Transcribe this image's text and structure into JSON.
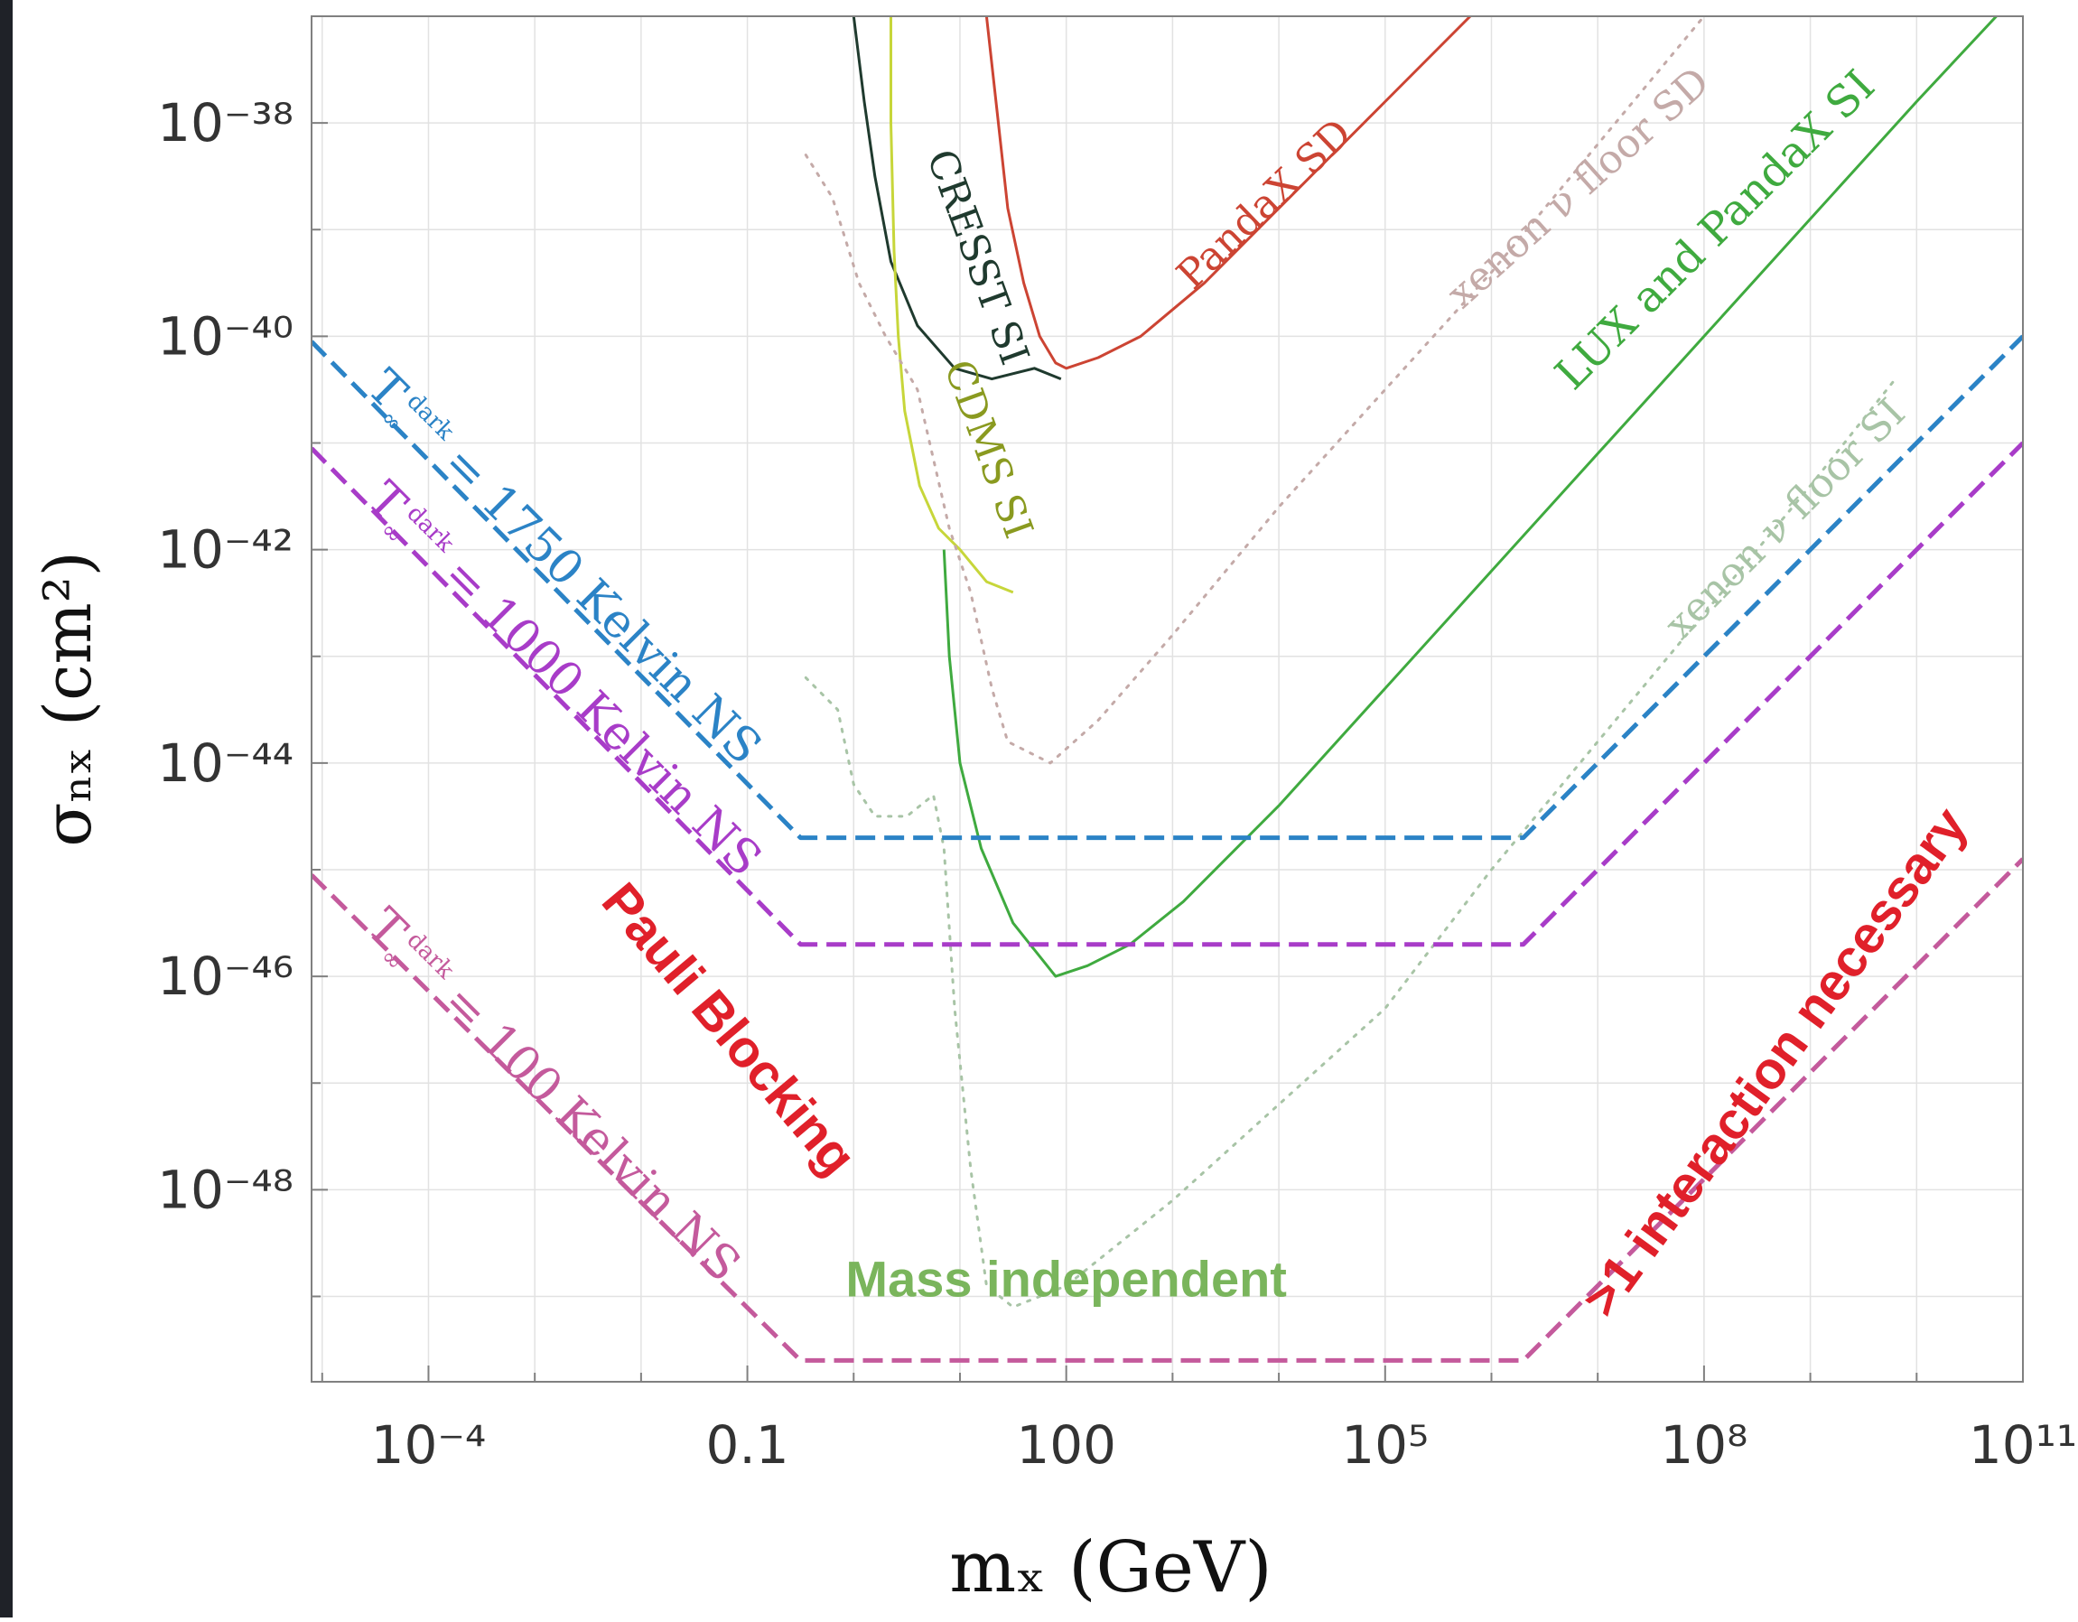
{
  "chart_data": {
    "type": "line",
    "title": "",
    "xlabel": "mₓ  (GeV)",
    "ylabel": "σₙₓ  (cm²)",
    "x_scale": "log10",
    "y_scale": "log10",
    "xlim_log10": [
      -5.1,
      11.0
    ],
    "ylim_log10": [
      -49.8,
      -37.0
    ],
    "x_ticks": [
      {
        "log": -4,
        "label": "10⁻⁴"
      },
      {
        "log": -1,
        "label": "0.1"
      },
      {
        "log": 2,
        "label": "100"
      },
      {
        "log": 5,
        "label": "10⁵"
      },
      {
        "log": 8,
        "label": "10⁸"
      },
      {
        "log": 11,
        "label": "10¹¹"
      }
    ],
    "y_ticks": [
      {
        "log": -38,
        "label": "10⁻³⁸"
      },
      {
        "log": -40,
        "label": "10⁻⁴⁰"
      },
      {
        "log": -42,
        "label": "10⁻⁴²"
      },
      {
        "log": -44,
        "label": "10⁻⁴⁴"
      },
      {
        "log": -46,
        "label": "10⁻⁴⁶"
      },
      {
        "log": -48,
        "label": "10⁻⁴⁸"
      }
    ],
    "grid": true,
    "series": [
      {
        "name": "PandaX SD",
        "color": "#cc4433",
        "dash": "solid",
        "width": 3,
        "points": [
          [
            1.25,
            -37
          ],
          [
            1.35,
            -37.9
          ],
          [
            1.45,
            -38.8
          ],
          [
            1.6,
            -39.5
          ],
          [
            1.75,
            -40
          ],
          [
            1.9,
            -40.25
          ],
          [
            2.0,
            -40.3
          ],
          [
            2.3,
            -40.2
          ],
          [
            2.7,
            -40.0
          ],
          [
            3.3,
            -39.5
          ],
          [
            4.1,
            -38.7
          ],
          [
            5.0,
            -37.8
          ],
          [
            5.8,
            -37
          ]
        ]
      },
      {
        "name": "CRESST SI",
        "color": "#1f3a2e",
        "dash": "solid",
        "width": 3,
        "points": [
          [
            0.0,
            -37
          ],
          [
            0.1,
            -37.8
          ],
          [
            0.2,
            -38.5
          ],
          [
            0.35,
            -39.3
          ],
          [
            0.6,
            -39.9
          ],
          [
            0.95,
            -40.3
          ],
          [
            1.3,
            -40.4
          ],
          [
            1.7,
            -40.3
          ],
          [
            1.95,
            -40.4
          ]
        ]
      },
      {
        "name": "CDMS SI",
        "color": "#c7d63a",
        "dash": "solid",
        "width": 3,
        "points": [
          [
            0.35,
            -37
          ],
          [
            0.35,
            -38
          ],
          [
            0.38,
            -39.2
          ],
          [
            0.42,
            -40
          ],
          [
            0.48,
            -40.7
          ],
          [
            0.62,
            -41.4
          ],
          [
            0.8,
            -41.8
          ],
          [
            1.0,
            -42
          ],
          [
            1.25,
            -42.3
          ],
          [
            1.5,
            -42.4
          ]
        ]
      },
      {
        "name": "LUX and PandaX SI",
        "color": "#3faa3f",
        "dash": "solid",
        "width": 3,
        "points": [
          [
            0.85,
            -42
          ],
          [
            0.9,
            -43
          ],
          [
            1.0,
            -44
          ],
          [
            1.2,
            -44.8
          ],
          [
            1.5,
            -45.5
          ],
          [
            1.9,
            -46
          ],
          [
            2.2,
            -45.9
          ],
          [
            2.6,
            -45.7
          ],
          [
            3.1,
            -45.3
          ],
          [
            4.0,
            -44.4
          ],
          [
            5.0,
            -43.3
          ],
          [
            6.0,
            -42.2
          ],
          [
            7.0,
            -41.1
          ],
          [
            8.0,
            -40.0
          ],
          [
            9.0,
            -38.9
          ],
          [
            10.0,
            -37.8
          ],
          [
            10.75,
            -37
          ]
        ]
      },
      {
        "name": "xenon ν floor SD",
        "color": "#c4aaa8",
        "dash": "dotted",
        "width": 3,
        "points": [
          [
            -0.45,
            -38.3
          ],
          [
            -0.2,
            -38.7
          ],
          [
            0.05,
            -39.5
          ],
          [
            0.3,
            -40
          ],
          [
            0.6,
            -40.5
          ],
          [
            0.9,
            -41.8
          ],
          [
            1.1,
            -42.4
          ],
          [
            1.3,
            -43.3
          ],
          [
            1.45,
            -43.8
          ],
          [
            1.85,
            -44
          ],
          [
            2.3,
            -43.6
          ],
          [
            3.0,
            -42.8
          ],
          [
            4.0,
            -41.6
          ],
          [
            5.0,
            -40.5
          ],
          [
            6.0,
            -39.4
          ],
          [
            7.0,
            -38.2
          ],
          [
            8.0,
            -37
          ]
        ]
      },
      {
        "name": "xenon ν floor SI",
        "color": "#a8c4a6",
        "dash": "dotted",
        "width": 3,
        "points": [
          [
            -0.45,
            -43.2
          ],
          [
            -0.15,
            -43.5
          ],
          [
            0.0,
            -44.2
          ],
          [
            0.2,
            -44.5
          ],
          [
            0.5,
            -44.5
          ],
          [
            0.75,
            -44.3
          ],
          [
            0.85,
            -44.8
          ],
          [
            0.95,
            -46.3
          ],
          [
            1.1,
            -47.8
          ],
          [
            1.25,
            -48.9
          ],
          [
            1.5,
            -49.1
          ],
          [
            2.0,
            -48.9
          ],
          [
            3.0,
            -48.1
          ],
          [
            4.0,
            -47.2
          ],
          [
            5.0,
            -46.3
          ],
          [
            6.0,
            -45.0
          ],
          [
            7.0,
            -43.8
          ],
          [
            8.0,
            -42.6
          ],
          [
            9.0,
            -41.4
          ],
          [
            9.8,
            -40.4
          ]
        ]
      },
      {
        "name": "T∞ dark = 1750 Kelvin NS",
        "color": "#2b83c6",
        "dash": "dashed",
        "width": 5,
        "points": [
          [
            -5.1,
            -40.05
          ],
          [
            -0.5,
            -44.7
          ],
          [
            6.3,
            -44.7
          ],
          [
            11.0,
            -40.0
          ]
        ]
      },
      {
        "name": "T∞ dark = 1000 Kelvin NS",
        "color": "#a83cc8",
        "dash": "dashed",
        "width": 5,
        "points": [
          [
            -5.1,
            -41.05
          ],
          [
            -0.5,
            -45.7
          ],
          [
            6.3,
            -45.7
          ],
          [
            11.0,
            -41.0
          ]
        ]
      },
      {
        "name": "T∞ dark = 100 Kelvin NS",
        "color": "#c45a9c",
        "dash": "dashed",
        "width": 5,
        "points": [
          [
            -5.1,
            -45.05
          ],
          [
            -0.5,
            -49.6
          ],
          [
            6.3,
            -49.6
          ],
          [
            11.0,
            -44.9
          ]
        ]
      }
    ],
    "curve_labels": [
      {
        "text": "PandaX SD",
        "color": "#cc4433",
        "at": [
          3.95,
          -38.85
        ],
        "angle": -44,
        "size": 44
      },
      {
        "text": "CRESST SI",
        "color": "#1f3a2e",
        "at": [
          1.05,
          -39.3
        ],
        "angle": 70,
        "size": 44
      },
      {
        "text": "CDMS SI",
        "color": "#8a9a20",
        "at": [
          1.15,
          -41.1
        ],
        "angle": 70,
        "size": 44
      },
      {
        "text": "LUX and PandaX SI",
        "color": "#3faa3f",
        "at": [
          8.2,
          -39.1
        ],
        "angle": -45,
        "size": 48
      },
      {
        "text": "xenon ν floor SD",
        "color": "#c4aaa8",
        "at": [
          6.9,
          -38.7
        ],
        "angle": -42,
        "size": 44
      },
      {
        "text": "xenon ν floor SI",
        "color": "#a8c4a6",
        "at": [
          8.85,
          -41.8
        ],
        "angle": -45,
        "size": 44
      }
    ],
    "ns_labels": [
      {
        "prefix": "T",
        "sub": "∞",
        "sup": "dark",
        "rest": " = 1750 Kelvin NS",
        "color": "#2b83c6",
        "at": [
          -4.6,
          -40.5
        ],
        "angle": 45
      },
      {
        "prefix": "T",
        "sub": "∞",
        "sup": "dark",
        "rest": " = 1000 Kelvin NS",
        "color": "#a83cc8",
        "at": [
          -4.6,
          -41.55
        ],
        "angle": 45
      },
      {
        "prefix": "T",
        "sub": "∞",
        "sup": "dark",
        "rest": " = 100 Kelvin NS",
        "color": "#c45a9c",
        "at": [
          -4.6,
          -45.55
        ],
        "angle": 45
      }
    ],
    "annotations": [
      {
        "text": "Pauli Blocking",
        "color": "#e0202a",
        "at": [
          -1.3,
          -46.6
        ],
        "angle": 50,
        "size": 58
      },
      {
        "text": "Mass independent",
        "color": "#7ab55c",
        "at": [
          2.0,
          -49.0
        ],
        "angle": 0,
        "size": 56
      },
      {
        "text": ">1 interaction necessary",
        "color": "#e0202a",
        "at": [
          8.8,
          -46.9
        ],
        "angle": -54,
        "size": 58
      }
    ]
  }
}
